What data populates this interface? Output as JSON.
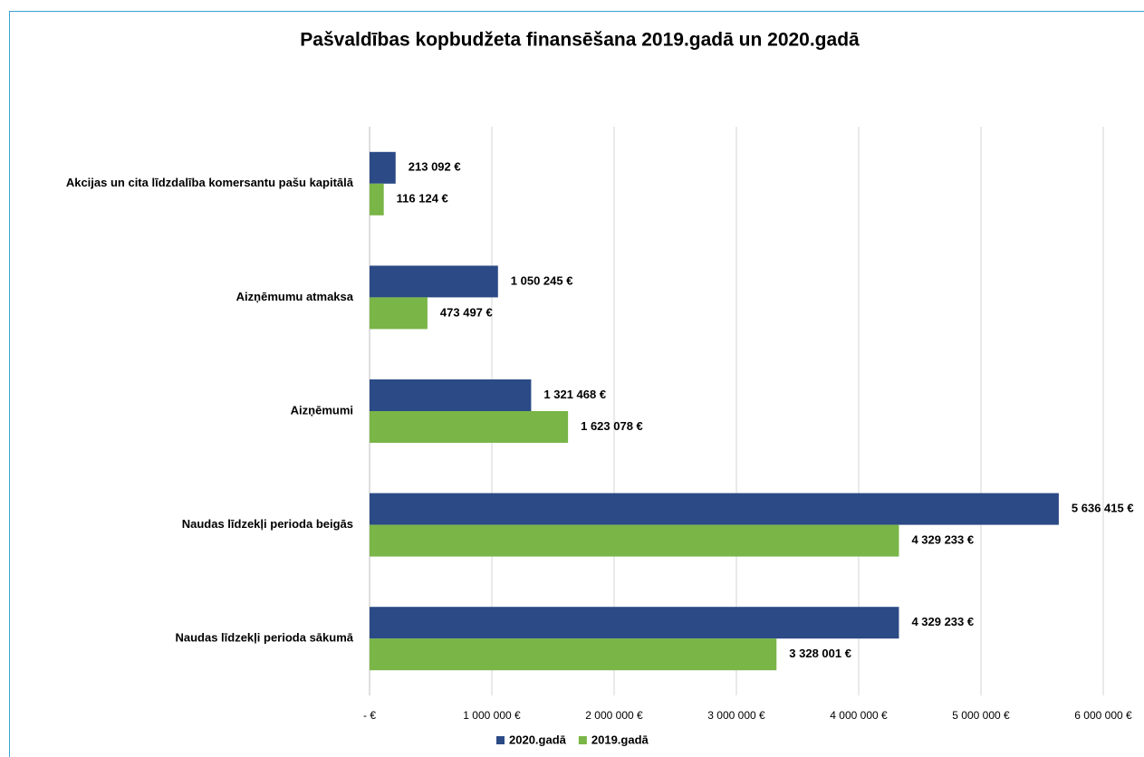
{
  "chart_data": {
    "type": "bar",
    "orientation": "horizontal",
    "title": "Pašvaldības kopbudžeta finansēšana 2019.gadā un 2020.gadā",
    "categories": [
      "Akcijas un cita līdzdalība komersantu pašu kapitālā",
      "Aizņēmumu atmaksa",
      "Aizņēmumi",
      "Naudas līdzekļi perioda beigās",
      "Naudas līdzekļi perioda sākumā"
    ],
    "series": [
      {
        "name": "2020.gadā",
        "color": "#2b4a86",
        "values": [
          213092,
          1050245,
          1321468,
          5636415,
          4329233
        ],
        "value_labels": [
          "213 092 €",
          "1 050 245 €",
          "1 321 468 €",
          "5 636 415 €",
          "4 329 233 €"
        ]
      },
      {
        "name": "2019.gadā",
        "color": "#79b547",
        "values": [
          116124,
          473497,
          1623078,
          4329233,
          3328001
        ],
        "value_labels": [
          "116 124 €",
          "473 497 €",
          "1 623 078 €",
          "4 329 233 €",
          "3 328 001 €"
        ]
      }
    ],
    "xlim": [
      0,
      6000000
    ],
    "xticks": [
      {
        "value": 0,
        "label": "-  €"
      },
      {
        "value": 1000000,
        "label": "1 000 000 €"
      },
      {
        "value": 2000000,
        "label": "2 000 000 €"
      },
      {
        "value": 3000000,
        "label": "3 000 000 €"
      },
      {
        "value": 4000000,
        "label": "4 000 000 €"
      },
      {
        "value": 5000000,
        "label": "5 000 000 €"
      },
      {
        "value": 6000000,
        "label": "6 000 000 €"
      }
    ],
    "grid": true,
    "legend": "bottom"
  }
}
